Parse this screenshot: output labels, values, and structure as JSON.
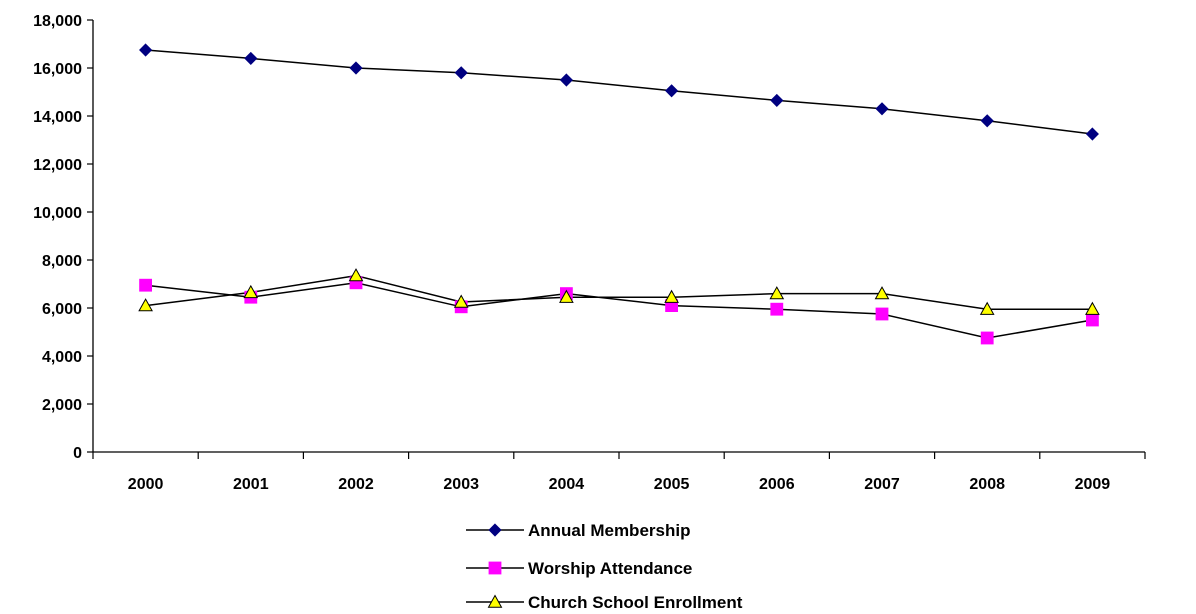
{
  "chart_data": {
    "type": "line",
    "title": "",
    "xlabel": "",
    "ylabel": "",
    "categories": [
      "2000",
      "2001",
      "2002",
      "2003",
      "2004",
      "2005",
      "2006",
      "2007",
      "2008",
      "2009"
    ],
    "ylim": [
      0,
      18000
    ],
    "yticks": [
      0,
      2000,
      4000,
      6000,
      8000,
      10000,
      12000,
      14000,
      16000,
      18000
    ],
    "ytick_labels": [
      "0",
      "2,000",
      "4,000",
      "6,000",
      "8,000",
      "10,000",
      "12,000",
      "14,000",
      "16,000",
      "18,000"
    ],
    "grid": false,
    "legend_position": "bottom",
    "series": [
      {
        "name": "Annual Membership",
        "values": [
          16750,
          16400,
          16000,
          15800,
          15500,
          15050,
          14650,
          14300,
          13800,
          13250
        ],
        "marker": "diamond",
        "color": "#000080",
        "line_color": "#000000"
      },
      {
        "name": "Worship Attendance",
        "values": [
          6950,
          6450,
          7050,
          6050,
          6600,
          6100,
          5950,
          5750,
          4750,
          5500
        ],
        "marker": "square",
        "color": "#ff00ff",
        "line_color": "#000000"
      },
      {
        "name": "Church School Enrollment",
        "values": [
          6100,
          6650,
          7350,
          6250,
          6450,
          6450,
          6600,
          6600,
          5950,
          5950
        ],
        "marker": "triangle",
        "color": "#ffff00",
        "line_color": "#000000"
      }
    ]
  }
}
